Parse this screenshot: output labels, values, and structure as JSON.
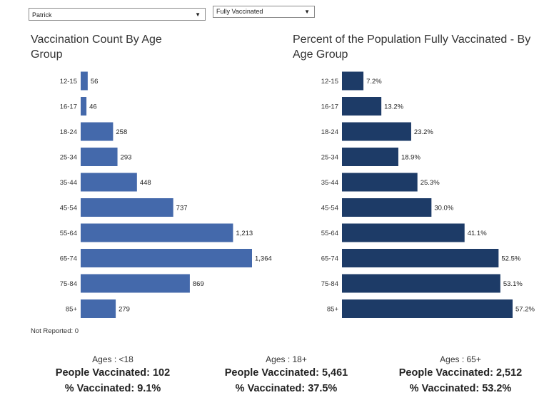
{
  "filters": {
    "county": "Patrick",
    "status": "Fully Vaccinated"
  },
  "colors": {
    "left_bar": "#4469ab",
    "right_bar": "#1d3b67"
  },
  "chart_data": [
    {
      "type": "bar",
      "orientation": "horizontal",
      "title": "Vaccination Count By Age Group",
      "categories": [
        "12-15",
        "16-17",
        "18-24",
        "25-34",
        "35-44",
        "45-54",
        "55-64",
        "65-74",
        "75-84",
        "85+"
      ],
      "values": [
        56,
        46,
        258,
        293,
        448,
        737,
        1213,
        1364,
        869,
        279
      ],
      "value_labels": [
        "56",
        "46",
        "258",
        "293",
        "448",
        "737",
        "1,213",
        "1,364",
        "869",
        "279"
      ],
      "xlim": [
        0,
        1364
      ]
    },
    {
      "type": "bar",
      "orientation": "horizontal",
      "title": "Percent of the Population Fully Vaccinated - By Age Group",
      "categories": [
        "12-15",
        "16-17",
        "18-24",
        "25-34",
        "35-44",
        "45-54",
        "55-64",
        "65-74",
        "75-84",
        "85+"
      ],
      "values": [
        7.2,
        13.2,
        23.2,
        18.9,
        25.3,
        30.0,
        41.1,
        52.5,
        53.1,
        57.2
      ],
      "value_labels": [
        "7.2%",
        "13.2%",
        "23.2%",
        "18.9%",
        "25.3%",
        "30.0%",
        "41.1%",
        "52.5%",
        "53.1%",
        "57.2%"
      ],
      "xlim": [
        0,
        57.2
      ]
    }
  ],
  "not_reported": "Not Reported: 0",
  "summaries": [
    {
      "ages": "Ages : <18",
      "people": "People Vaccinated: 102",
      "percent": "% Vaccinated: 9.1%"
    },
    {
      "ages": "Ages : 18+",
      "people": "People Vaccinated:  5,461",
      "percent": "% Vaccinated: 37.5%"
    },
    {
      "ages": "Ages : 65+",
      "people": "People Vaccinated: 2,512",
      "percent": "% Vaccinated: 53.2%"
    }
  ]
}
